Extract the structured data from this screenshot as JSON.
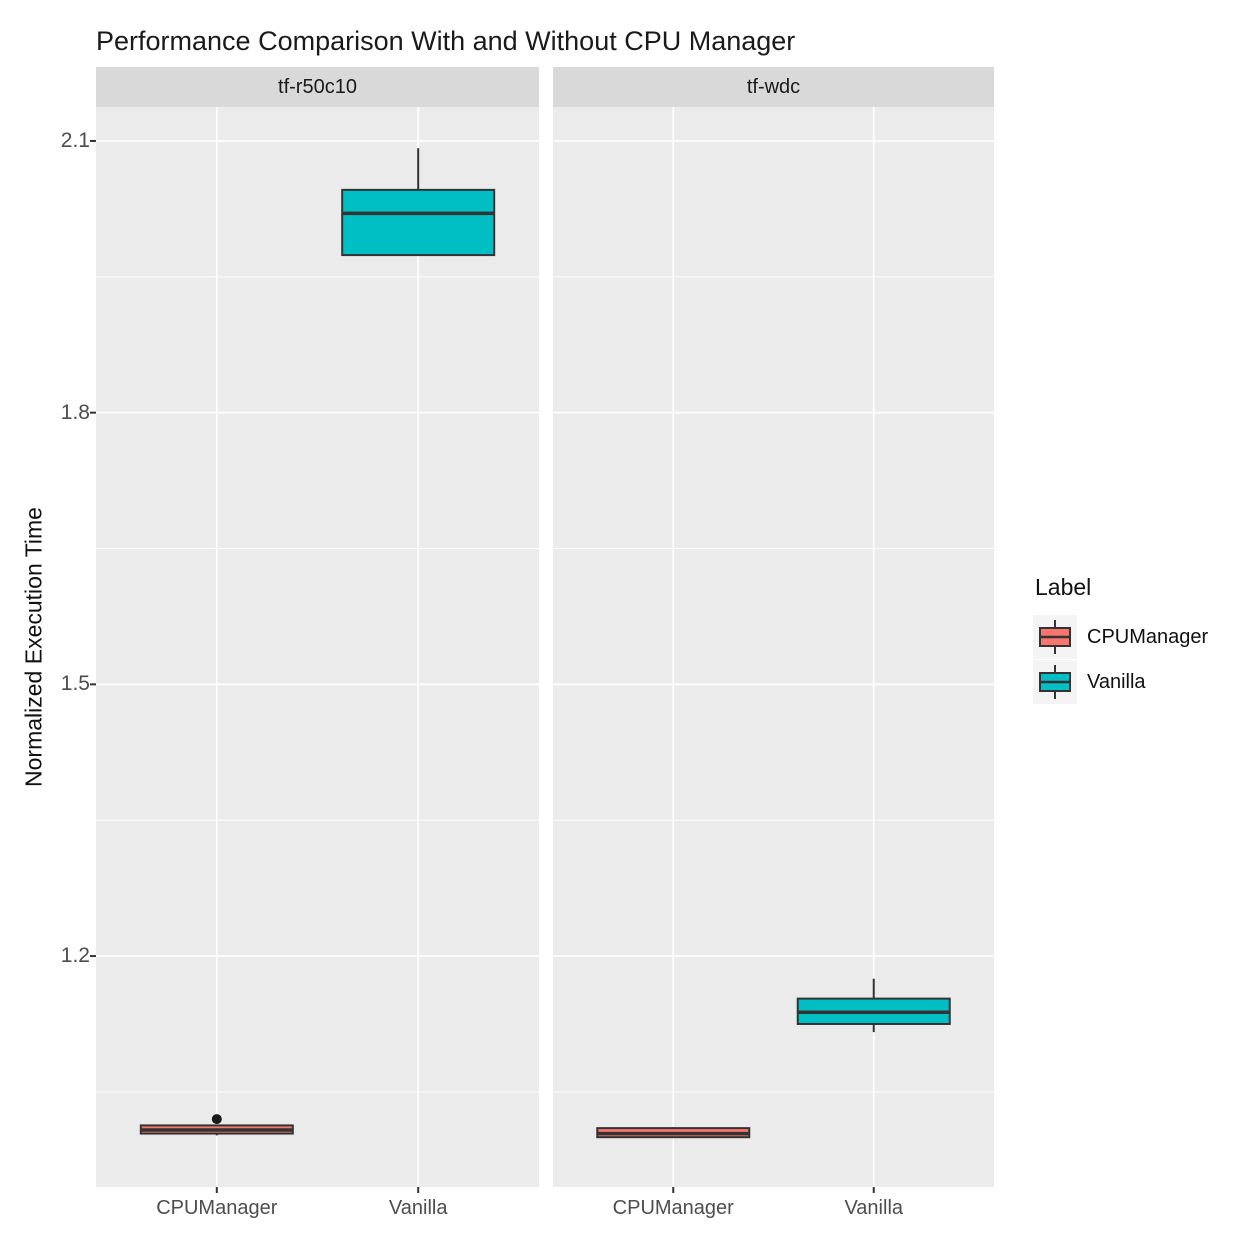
{
  "title": "Performance Comparison With and Without CPU Manager",
  "legend": {
    "title": "Label",
    "items": [
      {
        "label": "CPUManager",
        "color": "#F8766D"
      },
      {
        "label": "Vanilla",
        "color": "#00BFC4"
      }
    ]
  },
  "axes": {
    "y_label": "Normalized Execution Time",
    "x_categories": [
      "CPUManager",
      "Vanilla"
    ]
  },
  "colors": {
    "panel_bg": "#EBEBEB",
    "strip_bg": "#D9D9D9",
    "grid": "#FFFFFF",
    "box_outline": "#333333",
    "outlier": "#1A1A1A",
    "axis_text": "#4D4D4D",
    "cpumanager_fill": "#F8766D",
    "vanilla_fill": "#00BFC4"
  },
  "chart_data": {
    "type": "boxplot",
    "title": "Performance Comparison With and Without CPU Manager",
    "ylabel": "Normalized Execution Time",
    "xlabel": "",
    "ylim": [
      0.945,
      2.1375
    ],
    "y_ticks": [
      2.1,
      1.8,
      1.5,
      1.2
    ],
    "y_minor_ticks": [
      1.95,
      1.65,
      1.35,
      1.05
    ],
    "grid": "on",
    "legend_position": "right",
    "categories": [
      "CPUManager",
      "Vanilla"
    ],
    "facets": [
      {
        "name": "tf-r50c10",
        "boxes": [
          {
            "category": "CPUManager",
            "series": "CPUManager",
            "color": "#F8766D",
            "min": 1.002,
            "q1": 1.004,
            "median": 1.008,
            "q3": 1.013,
            "max": 1.013,
            "outliers": [
              1.02
            ]
          },
          {
            "category": "Vanilla",
            "series": "Vanilla",
            "color": "#00BFC4",
            "min": 1.974,
            "q1": 1.974,
            "median": 2.02,
            "q3": 2.046,
            "max": 2.092,
            "outliers": []
          }
        ]
      },
      {
        "name": "tf-wdc",
        "boxes": [
          {
            "category": "CPUManager",
            "series": "CPUManager",
            "color": "#F8766D",
            "min": 0.999,
            "q1": 1.0,
            "median": 1.004,
            "q3": 1.01,
            "max": 1.011,
            "outliers": []
          },
          {
            "category": "Vanilla",
            "series": "Vanilla",
            "color": "#00BFC4",
            "min": 1.116,
            "q1": 1.125,
            "median": 1.138,
            "q3": 1.153,
            "max": 1.175,
            "outliers": []
          }
        ]
      }
    ]
  }
}
